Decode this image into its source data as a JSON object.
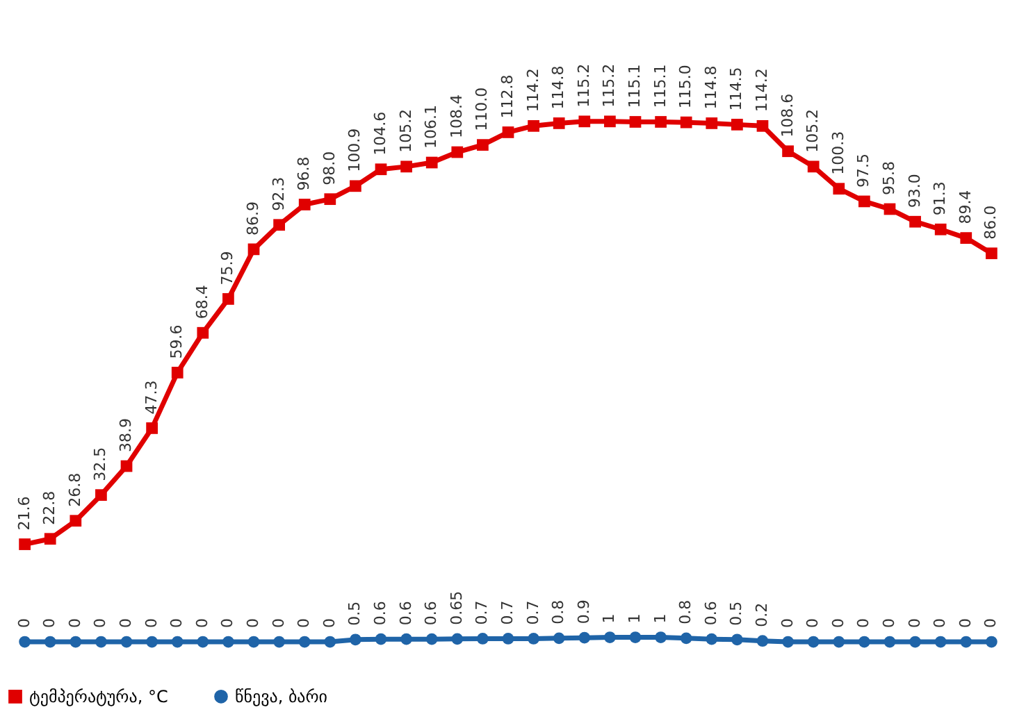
{
  "chart_data": {
    "type": "line",
    "categories": [
      null,
      null,
      null,
      null,
      null,
      null,
      null,
      null,
      null,
      null,
      null,
      null,
      null,
      null,
      null,
      null,
      null,
      null,
      null,
      null,
      null,
      null,
      null,
      null,
      null,
      null,
      null,
      null,
      null,
      null,
      null,
      null,
      null,
      null,
      null,
      null,
      null,
      null,
      null
    ],
    "series": [
      {
        "name": "ტემპერატურა, °C",
        "color": "#e00000",
        "marker": "square",
        "values": [
          21.6,
          22.8,
          26.8,
          32.5,
          38.9,
          47.3,
          59.6,
          68.4,
          75.9,
          86.9,
          92.3,
          96.8,
          98.0,
          100.9,
          104.6,
          105.2,
          106.1,
          108.4,
          110.0,
          112.8,
          114.2,
          114.8,
          115.2,
          115.2,
          115.1,
          115.1,
          115.0,
          114.8,
          114.5,
          114.2,
          108.6,
          105.2,
          100.3,
          97.5,
          95.8,
          93.0,
          91.3,
          89.4,
          86.0
        ],
        "value_labels": [
          "21.6",
          "22.8",
          "26.8",
          "32.5",
          "38.9",
          "47.3",
          "59.6",
          "68.4",
          "75.9",
          "86.9",
          "92.3",
          "96.8",
          "98.0",
          "100.9",
          "104.6",
          "105.2",
          "106.1",
          "108.4",
          "110.0",
          "112.8",
          "114.2",
          "114.8",
          "115.2",
          "115.2",
          "115.1",
          "115.1",
          "115.0",
          "114.8",
          "114.5",
          "114.2",
          "108.6",
          "105.2",
          "100.3",
          "97.5",
          "95.8",
          "93.0",
          "91.3",
          "89.4",
          "86.0"
        ]
      },
      {
        "name": "წნევა, ბარი",
        "color": "#1f64a8",
        "marker": "circle",
        "values": [
          0,
          0,
          0,
          0,
          0,
          0,
          0,
          0,
          0,
          0,
          0,
          0,
          0,
          0.5,
          0.6,
          0.6,
          0.6,
          0.65,
          0.7,
          0.7,
          0.7,
          0.8,
          0.9,
          1,
          1,
          1,
          0.8,
          0.6,
          0.5,
          0.2,
          0,
          0,
          0,
          0,
          0,
          0,
          0,
          0,
          0
        ],
        "value_labels": [
          "0",
          "0",
          "0",
          "0",
          "0",
          "0",
          "0",
          "0",
          "0",
          "0",
          "0",
          "0",
          "0",
          "0.5",
          "0.6",
          "0.6",
          "0.6",
          "0.65",
          "0.7",
          "0.7",
          "0.7",
          "0.8",
          "0.9",
          "1",
          "1",
          "1",
          "0.8",
          "0.6",
          "0.5",
          "0.2",
          "0",
          "0",
          "0",
          "0",
          "0",
          "0",
          "0",
          "0",
          "0"
        ]
      }
    ],
    "legend": "bottom",
    "line_style": "solid"
  }
}
